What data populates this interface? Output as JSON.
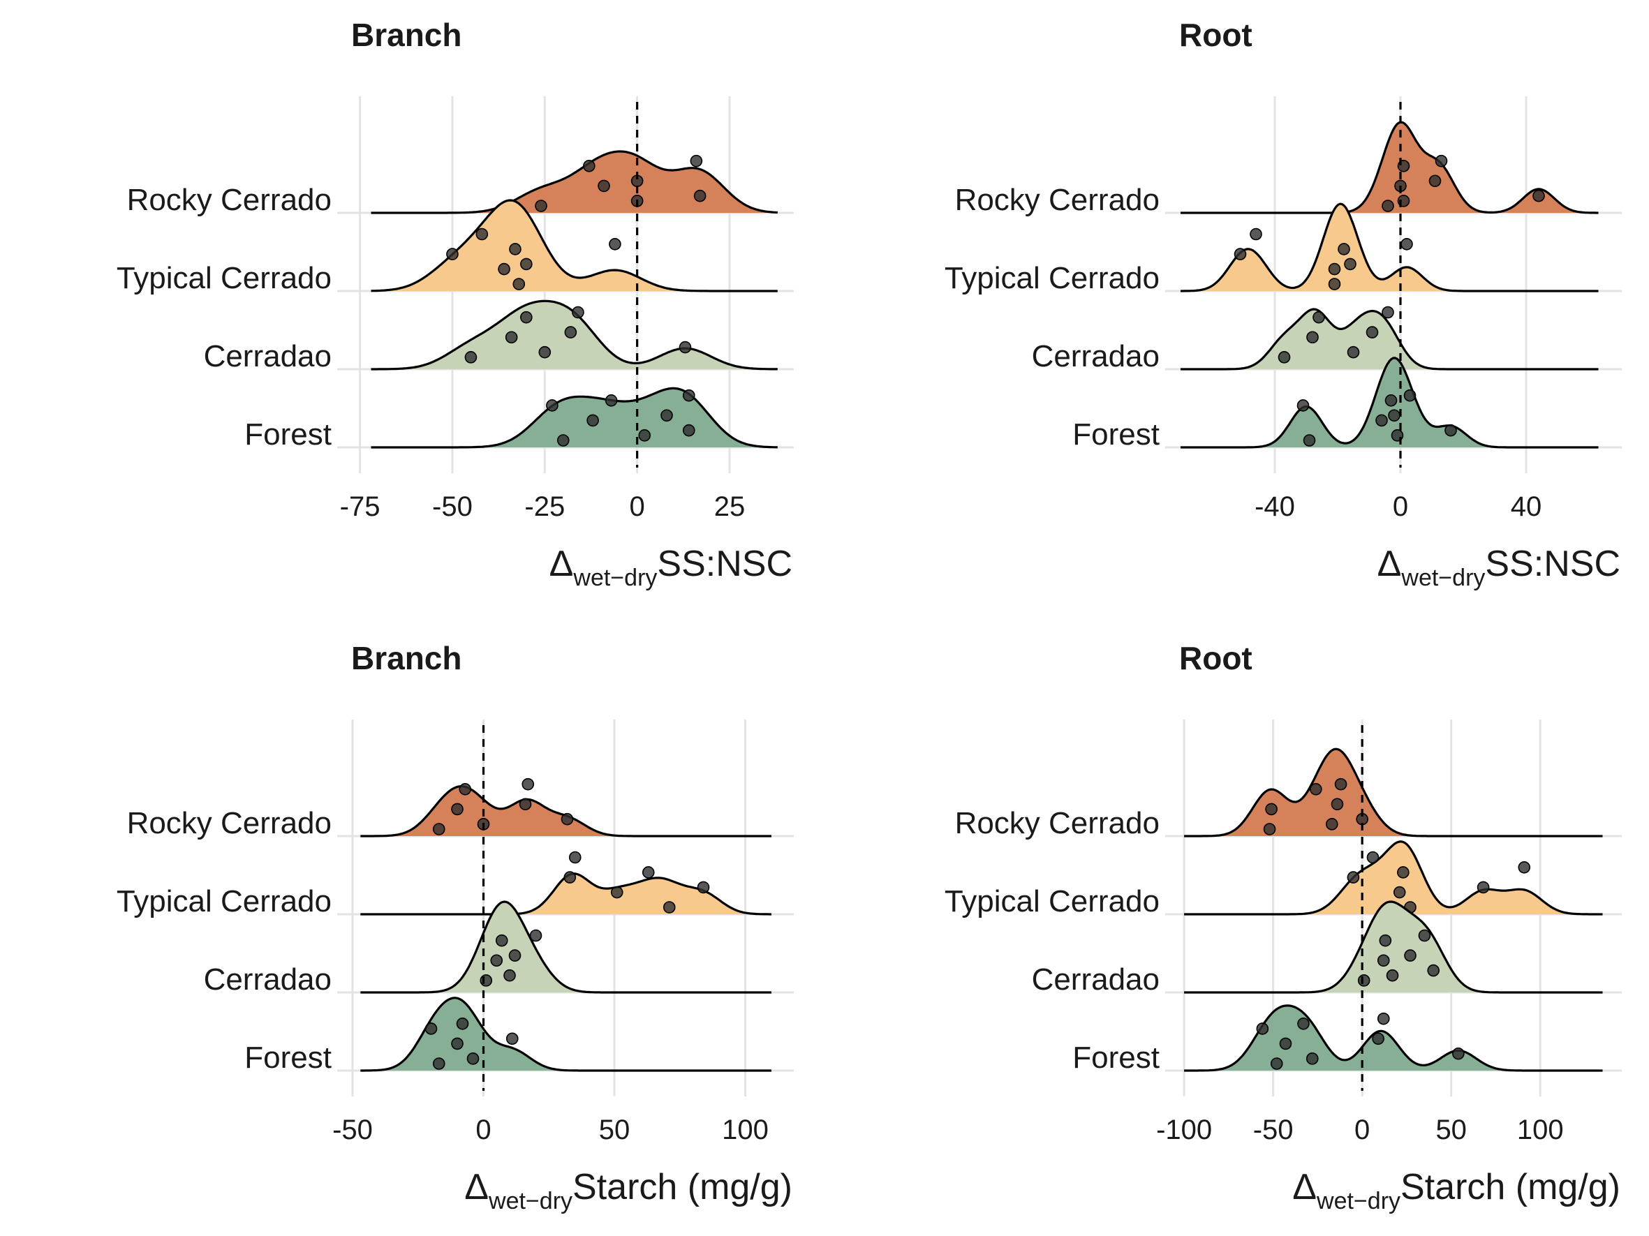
{
  "figure": {
    "type": "ridgeline-panels"
  },
  "colors": {
    "Rocky Cerrado": "#d5825b",
    "Typical Cerrado": "#f8c98c",
    "Cerradao": "#c6d3b7",
    "Forest": "#86af95",
    "grid": "#e3e3e3",
    "text": "#1a1a1a",
    "point": "#303030"
  },
  "chart_data": [
    {
      "type": "ridgeline",
      "title": "Branch",
      "xlabel_prefix": "Δ",
      "xlabel_sub": "wet−dry",
      "xlabel_main": "SS:NSC",
      "xlim": [
        -77,
        42
      ],
      "xticks": [
        -75,
        -50,
        -25,
        0,
        25
      ],
      "xtick_labels": [
        "-75",
        "-50",
        "-25",
        "0",
        "25"
      ],
      "density_range": [
        -72,
        38
      ],
      "bandwidth": 7,
      "reference_line": 0,
      "groups": [
        {
          "name": "Rocky Cerrado",
          "points": [
            -26,
            -9,
            -13,
            0,
            0,
            16,
            17
          ]
        },
        {
          "name": "Typical Cerrado",
          "points": [
            -50,
            -42,
            -36,
            -33,
            -32,
            -30,
            -6
          ]
        },
        {
          "name": "Cerradao",
          "points": [
            -45,
            -34,
            -30,
            -25,
            -18,
            -16,
            13
          ]
        },
        {
          "name": "Forest",
          "points": [
            -23,
            -20,
            -12,
            -7,
            2,
            8,
            14,
            14
          ]
        }
      ]
    },
    {
      "type": "ridgeline",
      "title": "Root",
      "xlabel_prefix": "Δ",
      "xlabel_sub": "wet−dry",
      "xlabel_main": "SS:NSC",
      "xlim": [
        -70,
        70
      ],
      "xticks": [
        -40,
        0,
        40
      ],
      "xtick_labels": [
        "-40",
        "0",
        "40"
      ],
      "density_range": [
        -70,
        63
      ],
      "bandwidth": 5,
      "reference_line": 0,
      "groups": [
        {
          "name": "Rocky Cerrado",
          "points": [
            -4,
            0,
            1,
            1,
            11,
            13,
            44
          ]
        },
        {
          "name": "Typical Cerrado",
          "points": [
            -51,
            -46,
            -21,
            -18,
            -21,
            -16,
            2
          ]
        },
        {
          "name": "Cerradao",
          "points": [
            -37,
            -28,
            -26,
            -15,
            -9,
            -4
          ]
        },
        {
          "name": "Forest",
          "points": [
            -31,
            -29,
            -6,
            -3,
            -1,
            -2,
            3,
            16
          ]
        }
      ]
    },
    {
      "type": "ridgeline",
      "title": "Branch",
      "xlabel_prefix": "Δ",
      "xlabel_sub": "wet−dry",
      "xlabel_main": "Starch (mg/g)",
      "xlim": [
        -50,
        118
      ],
      "xticks": [
        -50,
        0,
        50,
        100
      ],
      "xtick_labels": [
        "-50",
        "0",
        "50",
        "100"
      ],
      "density_range": [
        -47,
        110
      ],
      "bandwidth": 7,
      "reference_line": 0,
      "groups": [
        {
          "name": "Rocky Cerrado",
          "points": [
            -17,
            -10,
            -7,
            0,
            16,
            17,
            32
          ]
        },
        {
          "name": "Typical Cerrado",
          "points": [
            33,
            35,
            51,
            63,
            71,
            84
          ]
        },
        {
          "name": "Cerradao",
          "points": [
            1,
            5,
            7,
            10,
            12,
            20
          ]
        },
        {
          "name": "Forest",
          "points": [
            -20,
            -17,
            -10,
            -8,
            -4,
            11
          ]
        }
      ]
    },
    {
      "type": "ridgeline",
      "title": "Root",
      "xlabel_prefix": "Δ",
      "xlabel_sub": "wet−dry",
      "xlabel_main": "Starch (mg/g)",
      "xlim": [
        -102,
        145
      ],
      "xticks": [
        -100,
        -50,
        0,
        50,
        100
      ],
      "xtick_labels": [
        "-100",
        "-50",
        "0",
        "50",
        "100"
      ],
      "density_range": [
        -100,
        135
      ],
      "bandwidth": 10,
      "reference_line": 0,
      "groups": [
        {
          "name": "Rocky Cerrado",
          "points": [
            -52,
            -51,
            -26,
            -17,
            -14,
            -12,
            0
          ]
        },
        {
          "name": "Typical Cerrado",
          "points": [
            -5,
            6,
            21,
            23,
            27,
            68,
            91
          ]
        },
        {
          "name": "Cerradao",
          "points": [
            1,
            12,
            13,
            17,
            27,
            35,
            40
          ]
        },
        {
          "name": "Forest",
          "points": [
            -56,
            -48,
            -43,
            -33,
            -28,
            9,
            12,
            54
          ]
        }
      ]
    }
  ]
}
